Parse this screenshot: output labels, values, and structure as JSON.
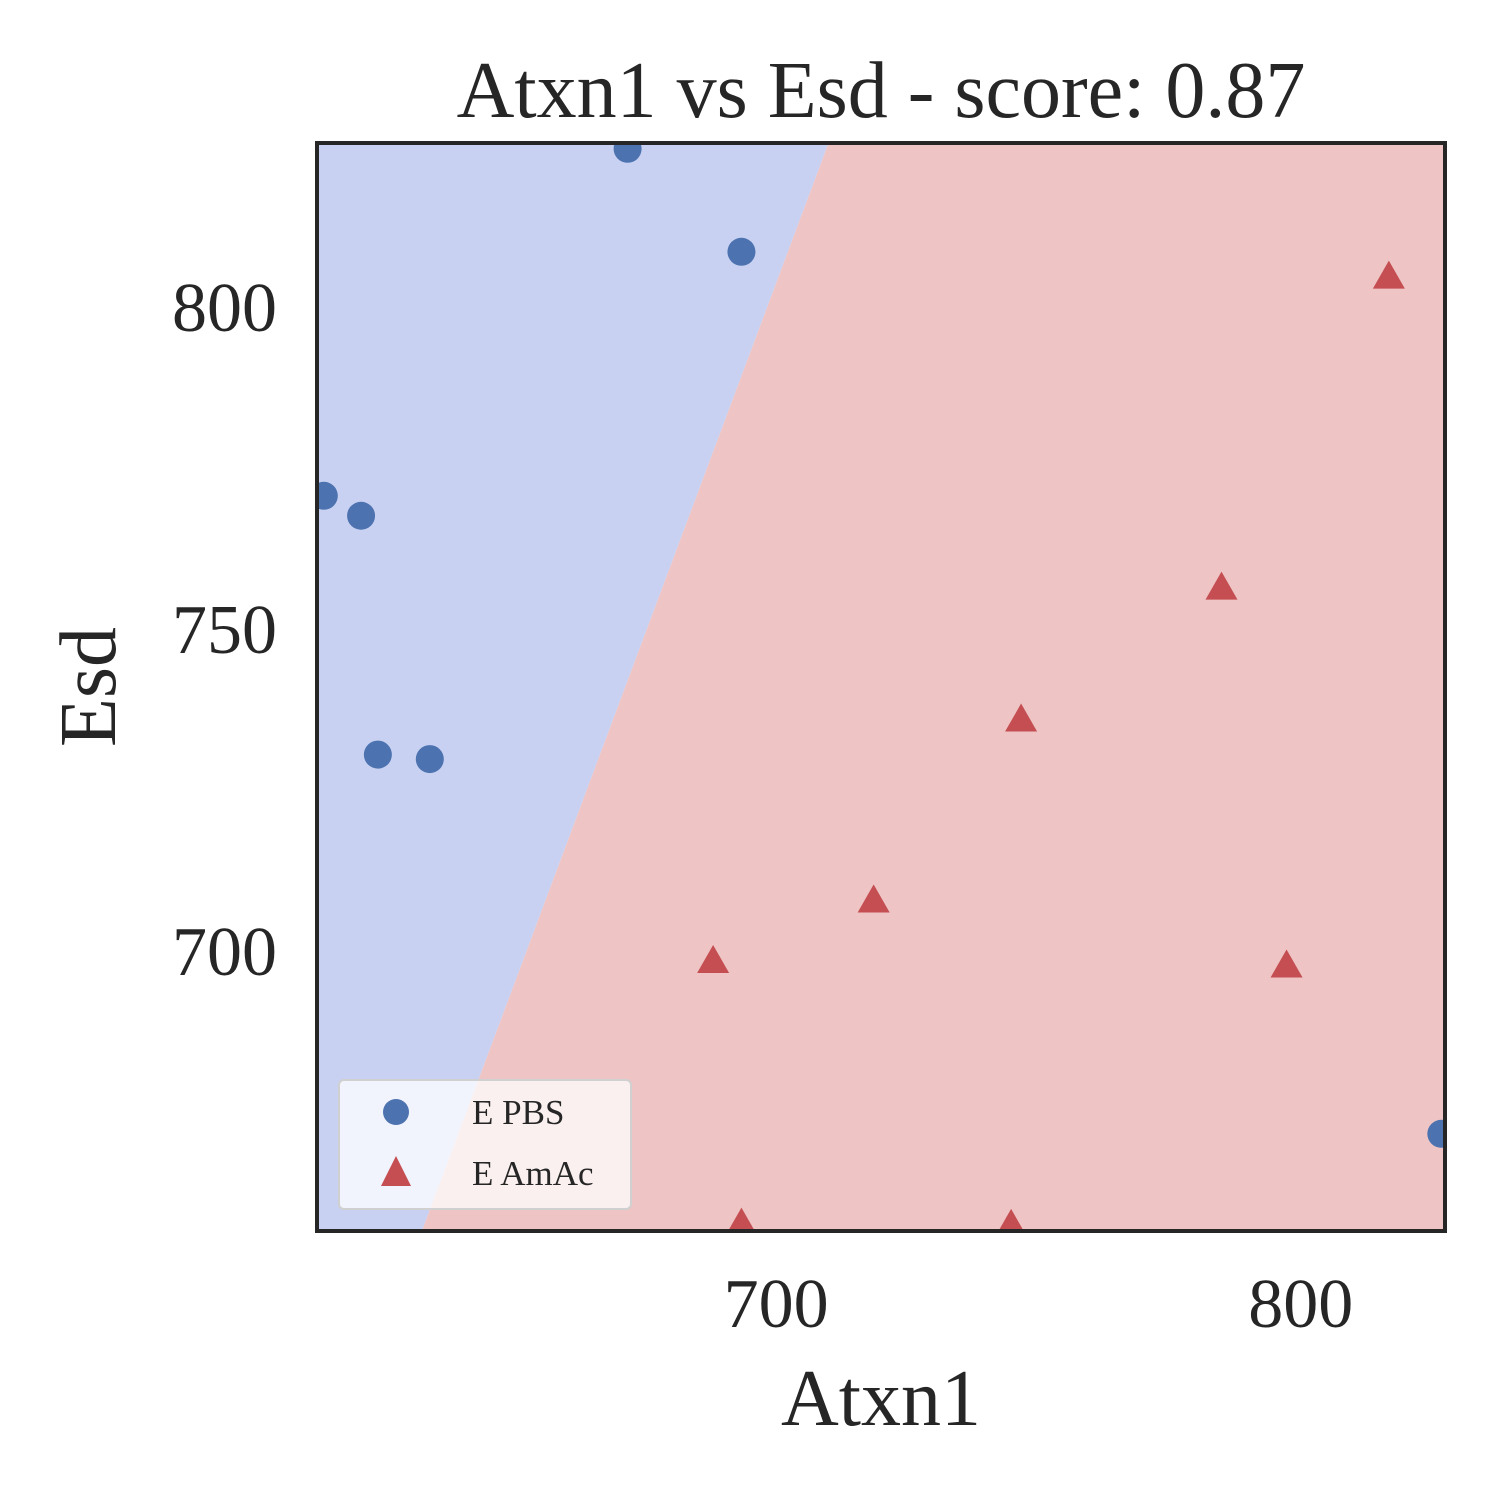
{
  "chart_data": {
    "type": "scatter",
    "title": "Atxn1 vs Esd - score: 0.87",
    "xlabel": "Atxn1",
    "ylabel": "Esd",
    "xlim": [
      612.5,
      827.5
    ],
    "ylim": [
      656.5,
      825.5
    ],
    "xticks": [
      700,
      800
    ],
    "yticks": [
      700,
      750,
      800
    ],
    "grid": false,
    "legend_position": "lower-left",
    "decision_boundary": {
      "points": [
        [
          632.5,
          656.5
        ],
        [
          710.0,
          825.5
        ]
      ]
    },
    "regions": {
      "left": "#c8d1f1",
      "right": "#eec4c4"
    },
    "series": [
      {
        "name": "E PBS",
        "marker": "circle",
        "color": "#4c72b0",
        "points": [
          [
            671.7,
            824.6
          ],
          [
            693.4,
            808.6
          ],
          [
            613.8,
            770.7
          ],
          [
            620.9,
            767.6
          ],
          [
            624.1,
            730.5
          ],
          [
            634.0,
            729.8
          ],
          [
            826.8,
            671.6
          ]
        ]
      },
      {
        "name": "E AmAc",
        "marker": "triangle",
        "color": "#c44e52",
        "points": [
          [
            816.8,
            804.9
          ],
          [
            784.9,
            756.6
          ],
          [
            746.7,
            736.1
          ],
          [
            718.6,
            708.0
          ],
          [
            688.0,
            698.6
          ],
          [
            797.3,
            697.9
          ],
          [
            693.4,
            657.8
          ],
          [
            744.8,
            657.6
          ]
        ]
      }
    ]
  }
}
